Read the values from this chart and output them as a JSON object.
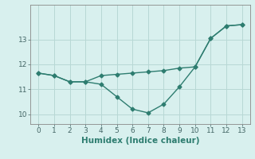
{
  "line1_x": [
    0,
    1,
    2,
    3,
    4,
    5,
    6,
    7,
    8,
    9,
    10,
    11,
    12,
    13
  ],
  "line1_y": [
    11.65,
    11.55,
    11.3,
    11.3,
    11.55,
    11.6,
    11.65,
    11.7,
    11.75,
    11.85,
    11.9,
    13.05,
    13.55,
    13.6
  ],
  "line2_x": [
    0,
    1,
    2,
    3,
    4,
    5,
    6,
    7,
    8,
    9,
    10,
    11,
    12,
    13
  ],
  "line2_y": [
    11.65,
    11.55,
    11.3,
    11.3,
    11.2,
    10.7,
    10.2,
    10.05,
    10.4,
    11.1,
    11.9,
    13.05,
    13.55,
    13.6
  ],
  "line_color": "#2e7d70",
  "bg_color": "#d8f0ee",
  "grid_color": "#b8d8d5",
  "xlabel": "Humidex (Indice chaleur)",
  "yticks": [
    10,
    11,
    12,
    13
  ],
  "xticks": [
    0,
    1,
    2,
    3,
    4,
    5,
    6,
    7,
    8,
    9,
    10,
    11,
    12,
    13
  ],
  "ylim": [
    9.6,
    14.4
  ],
  "xlim": [
    -0.5,
    13.5
  ],
  "marker": "D",
  "markersize": 2.5,
  "linewidth": 1.0,
  "xlabel_fontsize": 7.5,
  "tick_fontsize": 6.5
}
